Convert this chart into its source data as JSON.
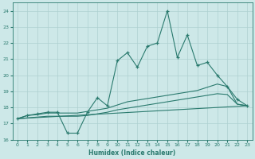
{
  "xlabel": "Humidex (Indice chaleur)",
  "xlim": [
    -0.5,
    23.5
  ],
  "ylim": [
    16,
    24.5
  ],
  "yticks": [
    16,
    17,
    18,
    19,
    20,
    21,
    22,
    23,
    24
  ],
  "xticks": [
    0,
    1,
    2,
    3,
    4,
    5,
    6,
    7,
    8,
    9,
    10,
    11,
    12,
    13,
    14,
    15,
    16,
    17,
    18,
    19,
    20,
    21,
    22,
    23
  ],
  "background_color": "#cde8e8",
  "grid_color": "#aed0d0",
  "line_color": "#2a7a6e",
  "line1_y": [
    17.3,
    17.5,
    17.6,
    17.7,
    17.7,
    16.4,
    16.4,
    17.7,
    18.6,
    18.1,
    20.9,
    21.4,
    20.5,
    21.8,
    22.0,
    24.0,
    21.1,
    22.5,
    20.6,
    20.8,
    20.0,
    19.3,
    18.5,
    18.1
  ],
  "line2_y": [
    17.3,
    17.5,
    17.55,
    17.65,
    17.65,
    17.65,
    17.65,
    17.75,
    17.85,
    17.95,
    18.15,
    18.35,
    18.45,
    18.55,
    18.65,
    18.75,
    18.85,
    18.95,
    19.05,
    19.25,
    19.45,
    19.3,
    18.2,
    18.1
  ],
  "line3_y": [
    17.3,
    17.35,
    17.4,
    17.45,
    17.45,
    17.45,
    17.45,
    17.5,
    17.6,
    17.7,
    17.85,
    17.95,
    18.05,
    18.15,
    18.25,
    18.35,
    18.45,
    18.55,
    18.65,
    18.75,
    18.85,
    18.8,
    18.2,
    18.1
  ],
  "line4_x": [
    0,
    23
  ],
  "line4_y": [
    17.3,
    18.1
  ]
}
